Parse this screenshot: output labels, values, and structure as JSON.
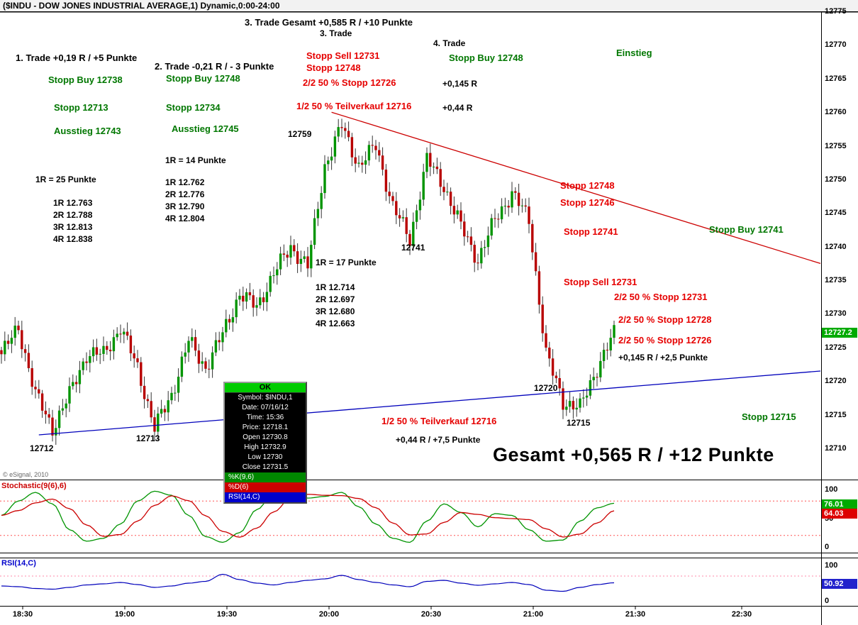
{
  "title": "($INDU - DOW JONES INDUSTRIAL AVERAGE,1) Dynamic,0:00-24:00",
  "colors": {
    "up": "#009400",
    "down": "#b80000",
    "resistance": "#cc0000",
    "support": "#0000bb",
    "green_text": "#007700",
    "red_text": "#e60000",
    "badge_green": "#00aa00",
    "badge_red": "#dd0000",
    "badge_blue": "#2222cc",
    "stoch_level": "#ff5555",
    "rsi_level": "#ff88aa",
    "wick": "#333333"
  },
  "ann": {
    "trade3_total": "3. Trade Gesamt +0,585 R / +10 Punkte",
    "trade3": "3. Trade",
    "trade1": "1. Trade +0,19 R / +5 Punkte",
    "trade2": "2. Trade -0,21 R / - 3 Punkte",
    "trade4": "4. Trade",
    "r145": "+0,145 R",
    "r44": "+0,44 R",
    "p12759": "12759",
    "r14": "1R = 14 Punkte",
    "r25": "1R = 25 Punkte",
    "rblock1": "1R 12.763\n2R 12.788\n3R 12.813\n4R 12.838",
    "rblock2": "1R 12.762\n2R 12.776\n3R 12.790\n4R 12.804",
    "p12741": "12741",
    "r17": "1R = 17 Punkte",
    "rblock3": "1R 12.714\n2R 12.697\n3R 12.680\n4R 12.663",
    "r145b": "+0,145 R / +2,5 Punkte",
    "p12720": "12720",
    "p12715": "12715",
    "r44b": "+0,44 R / +7,5 Punkte",
    "gesamt": "Gesamt +0,565 R / +12 Punkte",
    "p12712": "12712",
    "p12713": "12713",
    "copyright": "© eSignal, 2010",
    "g_sb12738": "Stopp Buy 12738",
    "g_s12713": "Stopp 12713",
    "g_a12743": "Ausstieg 12743",
    "g_sb12748a": "Stopp Buy 12748",
    "g_s12734": "Stopp 12734",
    "g_a12745": "Ausstieg 12745",
    "g_sb12748b": "Stopp Buy 12748",
    "g_einstieg": "Einstieg",
    "g_sb12741": "Stopp Buy 12741",
    "g_s12715": "Stopp 12715",
    "r_ss12731a": "Stopp Sell 12731",
    "r_s12748a": "Stopp 12748",
    "r_50s12726a": "2/2 50 % Stopp 12726",
    "r_tv12716a": "1/2 50 % Teilverkauf 12716",
    "r_s12748b": "Stopp 12748",
    "r_s12746": "Stopp 12746",
    "r_s12741": "Stopp 12741",
    "r_ss12731b": "Stopp Sell 12731",
    "r_50s12731": "2/2 50 % Stopp 12731",
    "r_50s12728": "2/2 50 % Stopp 12728",
    "r_50s12726b": "2/2 50 % Stopp 12726",
    "r_tv12716b": "1/2 50 % Teilverkauf 12716"
  },
  "tooltip": {
    "ok": "OK",
    "rows": [
      "Symbol: $INDU,1",
      "Date: 07/16/12",
      "Time: 15:36",
      "Price: 12718.1",
      "Open 12730.8",
      "High 12732.9",
      "Low 12730",
      "Close 12731.5"
    ],
    "k": "%K(9,6)",
    "d": "%D(6)",
    "rsi": "RSI(14,C)"
  },
  "axis": {
    "price_labels": [
      "12775",
      "12770",
      "12765",
      "12760",
      "12755",
      "12750",
      "12745",
      "12740",
      "12735",
      "12730",
      "12725",
      "12720",
      "12715",
      "12710"
    ],
    "last_price": "12727.2",
    "stoch_ticks": [
      "100",
      "50",
      "0"
    ],
    "stoch_k_value": "76.01",
    "stoch_d_value": "64.03",
    "rsi_ticks": [
      "100",
      "0"
    ],
    "rsi_value": "50.92"
  },
  "chart_data": {
    "type": "candlestick",
    "symbol": "$INDU",
    "title": "($INDU - DOW JONES INDUSTRIAL AVERAGE,1) Dynamic,0:00-24:00",
    "interval": "1 minute",
    "price_range": [
      12710,
      12775
    ],
    "price_tick": 5,
    "last_price": 12727.2,
    "session_high": 12760,
    "session_low": 12712,
    "time_ticks": [
      "18:30",
      "19:00",
      "19:30",
      "20:00",
      "20:30",
      "21:00",
      "21:30",
      "22:30"
    ],
    "closes_5min": [
      12724,
      12728,
      12718,
      12713,
      12718,
      12724,
      12724,
      12728,
      12722,
      12713,
      12718,
      12726,
      12722,
      12727,
      12733,
      12731,
      12736,
      12740,
      12737,
      12752,
      12758,
      12752,
      12755,
      12746,
      12741,
      12753,
      12749,
      12743,
      12738,
      12744,
      12748,
      12744,
      12724,
      12717,
      12716,
      12722,
      12727
    ],
    "trendlines": [
      {
        "name": "resistance",
        "color": "#cc0000",
        "from": {
          "t": 97,
          "price": 12760
        },
        "to": {
          "t": 241,
          "price": 12737.5
        }
      },
      {
        "name": "support",
        "color": "#0000bb",
        "from": {
          "t": 11,
          "price": 12712
        },
        "to": {
          "t": 241,
          "price": 12721.5
        }
      }
    ],
    "stochastic": {
      "label": "Stochastic(9(6),6)",
      "k_last": 76.01,
      "d_last": 64.03,
      "levels": [
        80,
        20
      ],
      "k_5min": [
        55,
        80,
        95,
        75,
        30,
        10,
        15,
        40,
        80,
        97,
        90,
        55,
        18,
        8,
        25,
        65,
        93,
        97,
        85,
        88,
        95,
        70,
        40,
        15,
        8,
        45,
        75,
        60,
        35,
        58,
        55,
        30,
        10,
        12,
        45,
        68,
        76
      ]
    },
    "rsi": {
      "label": "RSI(14,C)",
      "last": 50.92,
      "levels": [
        70
      ],
      "values_5min": [
        42,
        40,
        35,
        33,
        38,
        45,
        48,
        52,
        46,
        38,
        42,
        50,
        55,
        75,
        60,
        50,
        45,
        52,
        58,
        62,
        72,
        60,
        52,
        45,
        40,
        55,
        58,
        50,
        44,
        48,
        52,
        46,
        30,
        27,
        38,
        46,
        51
      ]
    }
  }
}
